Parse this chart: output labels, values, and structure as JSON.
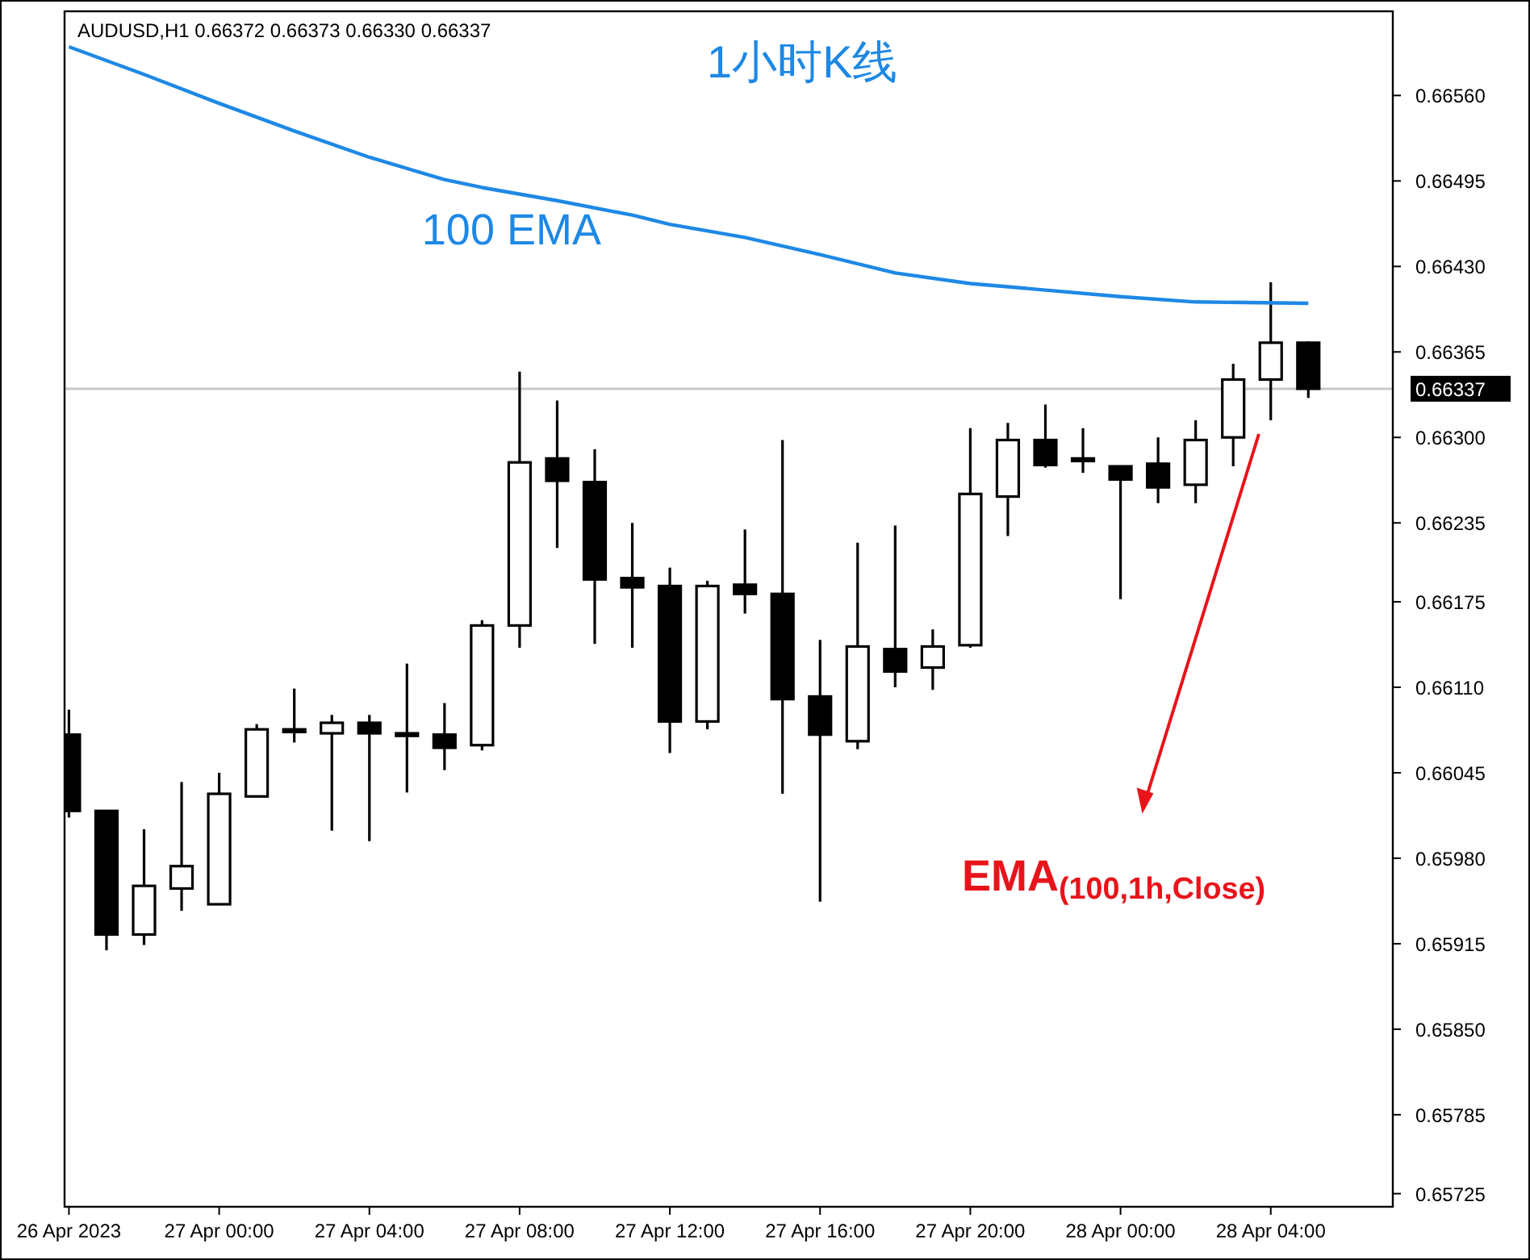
{
  "chart_data": {
    "type": "candlestick",
    "title": "AUDUSD,H1  0.66372 0.66373 0.66330 0.66337",
    "subtitle": "1小时K线",
    "x": [
      "2023-04-26T20:00",
      "2023-04-26T21:00",
      "2023-04-26T22:00",
      "2023-04-26T23:00",
      "2023-04-27T00:00",
      "2023-04-27T01:00",
      "2023-04-27T02:00",
      "2023-04-27T03:00",
      "2023-04-27T04:00",
      "2023-04-27T05:00",
      "2023-04-27T06:00",
      "2023-04-27T07:00",
      "2023-04-27T08:00",
      "2023-04-27T09:00",
      "2023-04-27T10:00",
      "2023-04-27T11:00",
      "2023-04-27T12:00",
      "2023-04-27T13:00",
      "2023-04-27T14:00",
      "2023-04-27T15:00",
      "2023-04-27T16:00",
      "2023-04-27T17:00",
      "2023-04-27T18:00",
      "2023-04-27T19:00",
      "2023-04-27T20:00",
      "2023-04-27T21:00",
      "2023-04-27T22:00",
      "2023-04-27T23:00",
      "2023-04-28T00:00",
      "2023-04-28T01:00",
      "2023-04-28T02:00",
      "2023-04-28T03:00",
      "2023-04-28T04:00",
      "2023-04-28T05:00"
    ],
    "ohlc": [
      [
        0.66074,
        0.66093,
        0.66011,
        0.66016
      ],
      [
        0.66016,
        0.66016,
        0.6591,
        0.65922
      ],
      [
        0.65922,
        0.66002,
        0.65914,
        0.65959
      ],
      [
        0.65957,
        0.66038,
        0.6594,
        0.65974
      ],
      [
        0.65945,
        0.66045,
        0.65945,
        0.66029
      ],
      [
        0.66027,
        0.66082,
        0.66027,
        0.66078
      ],
      [
        0.66078,
        0.66109,
        0.66068,
        0.66076
      ],
      [
        0.66075,
        0.66089,
        0.66001,
        0.66083
      ],
      [
        0.66083,
        0.66089,
        0.65993,
        0.66075
      ],
      [
        0.66075,
        0.66128,
        0.6603,
        0.66074
      ],
      [
        0.66074,
        0.66098,
        0.66047,
        0.66064
      ],
      [
        0.66066,
        0.66161,
        0.66062,
        0.66157
      ],
      [
        0.66157,
        0.6635,
        0.6614,
        0.66281
      ],
      [
        0.66284,
        0.66328,
        0.66216,
        0.66267
      ],
      [
        0.66266,
        0.66291,
        0.66143,
        0.66192
      ],
      [
        0.66193,
        0.66235,
        0.6614,
        0.66186
      ],
      [
        0.66187,
        0.66201,
        0.6606,
        0.66084
      ],
      [
        0.66084,
        0.66191,
        0.66078,
        0.66187
      ],
      [
        0.66188,
        0.6623,
        0.66166,
        0.66181
      ],
      [
        0.66181,
        0.66298,
        0.66029,
        0.66101
      ],
      [
        0.66103,
        0.66146,
        0.65947,
        0.66074
      ],
      [
        0.66069,
        0.6622,
        0.66063,
        0.66141
      ],
      [
        0.66139,
        0.66233,
        0.6611,
        0.66122
      ],
      [
        0.66125,
        0.66154,
        0.66108,
        0.66141
      ],
      [
        0.66142,
        0.66307,
        0.6614,
        0.66257
      ],
      [
        0.66255,
        0.66311,
        0.66225,
        0.66298
      ],
      [
        0.66298,
        0.66325,
        0.66277,
        0.66279
      ],
      [
        0.66284,
        0.66307,
        0.66273,
        0.66283
      ],
      [
        0.66278,
        0.66278,
        0.66177,
        0.66268
      ],
      [
        0.6628,
        0.663,
        0.6625,
        0.66262
      ],
      [
        0.66264,
        0.66313,
        0.6625,
        0.66298
      ],
      [
        0.663,
        0.66356,
        0.66278,
        0.66344
      ],
      [
        0.66344,
        0.66418,
        0.66313,
        0.66372
      ],
      [
        0.66372,
        0.66373,
        0.6633,
        0.66337
      ]
    ],
    "series": [
      {
        "type": "line",
        "name": "100 EMA",
        "color": "#1e88e5",
        "x": [
          "2023-04-26T20:00",
          "2023-04-26T22:00",
          "2023-04-27T00:00",
          "2023-04-27T02:00",
          "2023-04-27T04:00",
          "2023-04-27T06:00",
          "2023-04-27T07:00",
          "2023-04-27T09:00",
          "2023-04-27T11:00",
          "2023-04-27T12:00",
          "2023-04-27T14:00",
          "2023-04-27T16:00",
          "2023-04-27T18:00",
          "2023-04-27T20:00",
          "2023-04-27T22:00",
          "2023-04-28T00:00",
          "2023-04-28T02:00",
          "2023-04-28T05:00"
        ],
        "values": [
          0.66597,
          0.66576,
          0.66554,
          0.66533,
          0.66513,
          0.66496,
          0.6649,
          0.6648,
          0.66469,
          0.66462,
          0.66452,
          0.66439,
          0.66425,
          0.66417,
          0.66412,
          0.66407,
          0.66403,
          0.66402
        ]
      }
    ],
    "annotations": [
      "EMA$_{(100,1h,Close)}$"
    ],
    "ref_lines": [
      {
        "axis": "y",
        "value": 0.66337,
        "label": "0.66337",
        "color": "#c8c8c8"
      }
    ],
    "xlim": [
      "2023-04-26T19:53",
      "2023-04-28T07:15"
    ],
    "xticks": [
      {
        "value": "2023-04-26T20:00",
        "label": "26 Apr 2023"
      },
      {
        "value": "2023-04-27T00:00",
        "label": "27 Apr 00:00"
      },
      {
        "value": "2023-04-27T04:00",
        "label": "27 Apr 04:00"
      },
      {
        "value": "2023-04-27T08:00",
        "label": "27 Apr 08:00"
      },
      {
        "value": "2023-04-27T12:00",
        "label": "27 Apr 12:00"
      },
      {
        "value": "2023-04-27T16:00",
        "label": "27 Apr 16:00"
      },
      {
        "value": "2023-04-27T20:00",
        "label": "27 Apr 20:00"
      },
      {
        "value": "2023-04-28T00:00",
        "label": "28 Apr 00:00"
      },
      {
        "value": "2023-04-28T04:00",
        "label": "28 Apr 04:00"
      }
    ],
    "ylim": [
      0.65715,
      0.66624
    ],
    "yticks": [
      {
        "value": 0.6656,
        "label": "0.66560"
      },
      {
        "value": 0.66495,
        "label": "0.66495"
      },
      {
        "value": 0.6643,
        "label": "0.66430"
      },
      {
        "value": 0.66365,
        "label": "0.66365"
      },
      {
        "value": 0.663,
        "label": "0.66300"
      },
      {
        "value": 0.66235,
        "label": "0.66235"
      },
      {
        "value": 0.66175,
        "label": "0.66175"
      },
      {
        "value": 0.6611,
        "label": "0.66110"
      },
      {
        "value": 0.66045,
        "label": "0.66045"
      },
      {
        "value": 0.6598,
        "label": "0.65980"
      },
      {
        "value": 0.65915,
        "label": "0.65915"
      },
      {
        "value": 0.6585,
        "label": "0.65850"
      },
      {
        "value": 0.65785,
        "label": "0.65785"
      },
      {
        "value": 0.65725,
        "label": "0.65725"
      }
    ],
    "grid": false,
    "legend": false
  }
}
